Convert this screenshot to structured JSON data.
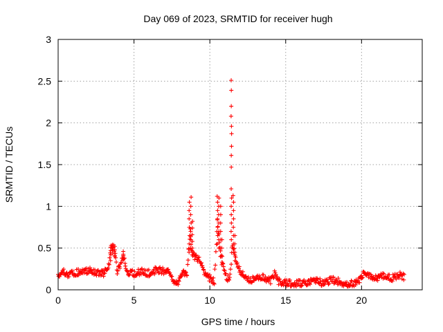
{
  "chart_data": {
    "type": "scatter",
    "title": "Day 069 of 2023, SRMTID for receiver hugh",
    "xlabel": "GPS time / hours",
    "ylabel": "SRMTID / TECUs",
    "xlim": [
      0,
      24
    ],
    "ylim": [
      0,
      3
    ],
    "x_ticks": [
      0,
      5,
      10,
      15,
      20
    ],
    "x_tick_labels": [
      "0",
      "5",
      "10",
      "15",
      "20"
    ],
    "y_ticks": [
      0,
      0.5,
      1,
      1.5,
      2,
      2.5,
      3
    ],
    "y_tick_labels": [
      "0",
      "0.5",
      "1",
      "1.5",
      "2",
      "2.5",
      "3"
    ],
    "grid": true,
    "marker": "plus",
    "series_color": "#ff0000",
    "series": [
      {
        "name": "SRMTID",
        "profile": [
          [
            0.0,
            0.18
          ],
          [
            0.3,
            0.22
          ],
          [
            0.6,
            0.17
          ],
          [
            1.0,
            0.2
          ],
          [
            1.5,
            0.22
          ],
          [
            2.0,
            0.23
          ],
          [
            2.5,
            0.21
          ],
          [
            3.0,
            0.2
          ],
          [
            3.3,
            0.25
          ],
          [
            3.5,
            0.5
          ],
          [
            3.7,
            0.5
          ],
          [
            3.9,
            0.22
          ],
          [
            4.1,
            0.3
          ],
          [
            4.3,
            0.4
          ],
          [
            4.5,
            0.22
          ],
          [
            5.0,
            0.2
          ],
          [
            5.5,
            0.22
          ],
          [
            6.0,
            0.2
          ],
          [
            6.5,
            0.24
          ],
          [
            7.0,
            0.22
          ],
          [
            7.4,
            0.2
          ],
          [
            7.6,
            0.08
          ],
          [
            7.9,
            0.07
          ],
          [
            8.2,
            0.2
          ],
          [
            8.5,
            0.2
          ],
          [
            8.7,
            0.7
          ],
          [
            8.8,
            0.45
          ],
          [
            9.0,
            0.4
          ],
          [
            9.4,
            0.35
          ],
          [
            9.6,
            0.2
          ],
          [
            10.0,
            0.14
          ],
          [
            10.3,
            0.1
          ],
          [
            10.5,
            0.8
          ],
          [
            10.7,
            0.45
          ],
          [
            10.9,
            0.25
          ],
          [
            11.1,
            0.15
          ],
          [
            11.3,
            0.12
          ],
          [
            11.5,
            0.55
          ],
          [
            11.8,
            0.3
          ],
          [
            12.0,
            0.22
          ],
          [
            12.5,
            0.12
          ],
          [
            13.0,
            0.12
          ],
          [
            13.5,
            0.16
          ],
          [
            14.0,
            0.1
          ],
          [
            14.3,
            0.2
          ],
          [
            14.5,
            0.1
          ],
          [
            15.0,
            0.08
          ],
          [
            16.0,
            0.08
          ],
          [
            16.5,
            0.08
          ],
          [
            17.0,
            0.12
          ],
          [
            17.5,
            0.07
          ],
          [
            18.0,
            0.12
          ],
          [
            18.5,
            0.1
          ],
          [
            19.0,
            0.07
          ],
          [
            19.5,
            0.08
          ],
          [
            19.9,
            0.12
          ],
          [
            20.2,
            0.22
          ],
          [
            20.5,
            0.18
          ],
          [
            21.0,
            0.13
          ],
          [
            21.5,
            0.17
          ],
          [
            22.0,
            0.14
          ],
          [
            22.5,
            0.18
          ],
          [
            22.85,
            0.15
          ]
        ],
        "spikes": [
          {
            "x": 3.45,
            "values": [
              0.35,
              0.42,
              0.47,
              0.51
            ]
          },
          {
            "x": 3.6,
            "values": [
              0.44,
              0.5,
              0.54
            ]
          },
          {
            "x": 3.75,
            "values": [
              0.4,
              0.48,
              0.52
            ]
          },
          {
            "x": 4.3,
            "values": [
              0.36,
              0.41,
              0.46
            ]
          },
          {
            "x": 8.65,
            "values": [
              0.45,
              0.55,
              0.65,
              0.75,
              0.85,
              0.95,
              1.05
            ]
          },
          {
            "x": 8.75,
            "values": [
              0.5,
              0.6,
              0.7,
              0.8,
              0.9,
              1.0,
              1.11
            ]
          },
          {
            "x": 8.85,
            "values": [
              0.42,
              0.5,
              0.58,
              0.66,
              0.74,
              0.82
            ]
          },
          {
            "x": 10.5,
            "values": [
              0.55,
              0.65,
              0.75,
              0.85,
              0.95,
              1.05,
              1.12
            ]
          },
          {
            "x": 10.6,
            "values": [
              0.5,
              0.6,
              0.7,
              0.8,
              0.9,
              1.0,
              1.1
            ]
          },
          {
            "x": 10.7,
            "values": [
              0.4,
              0.5,
              0.6,
              0.7,
              0.8,
              0.9,
              1.0
            ]
          },
          {
            "x": 10.8,
            "values": [
              0.3,
              0.4,
              0.5,
              0.6
            ]
          },
          {
            "x": 11.42,
            "values": [
              0.6,
              0.7,
              0.8,
              0.9,
              1.0,
              1.1,
              1.21,
              1.47,
              1.61,
              1.72,
              1.87,
              1.96,
              2.08,
              2.2,
              2.39,
              2.51
            ]
          },
          {
            "x": 11.55,
            "values": [
              0.45,
              0.55,
              0.65,
              0.75,
              0.85,
              0.95,
              1.05,
              1.13
            ]
          },
          {
            "x": 11.65,
            "values": [
              0.35,
              0.45,
              0.55,
              0.65
            ]
          }
        ]
      }
    ]
  }
}
